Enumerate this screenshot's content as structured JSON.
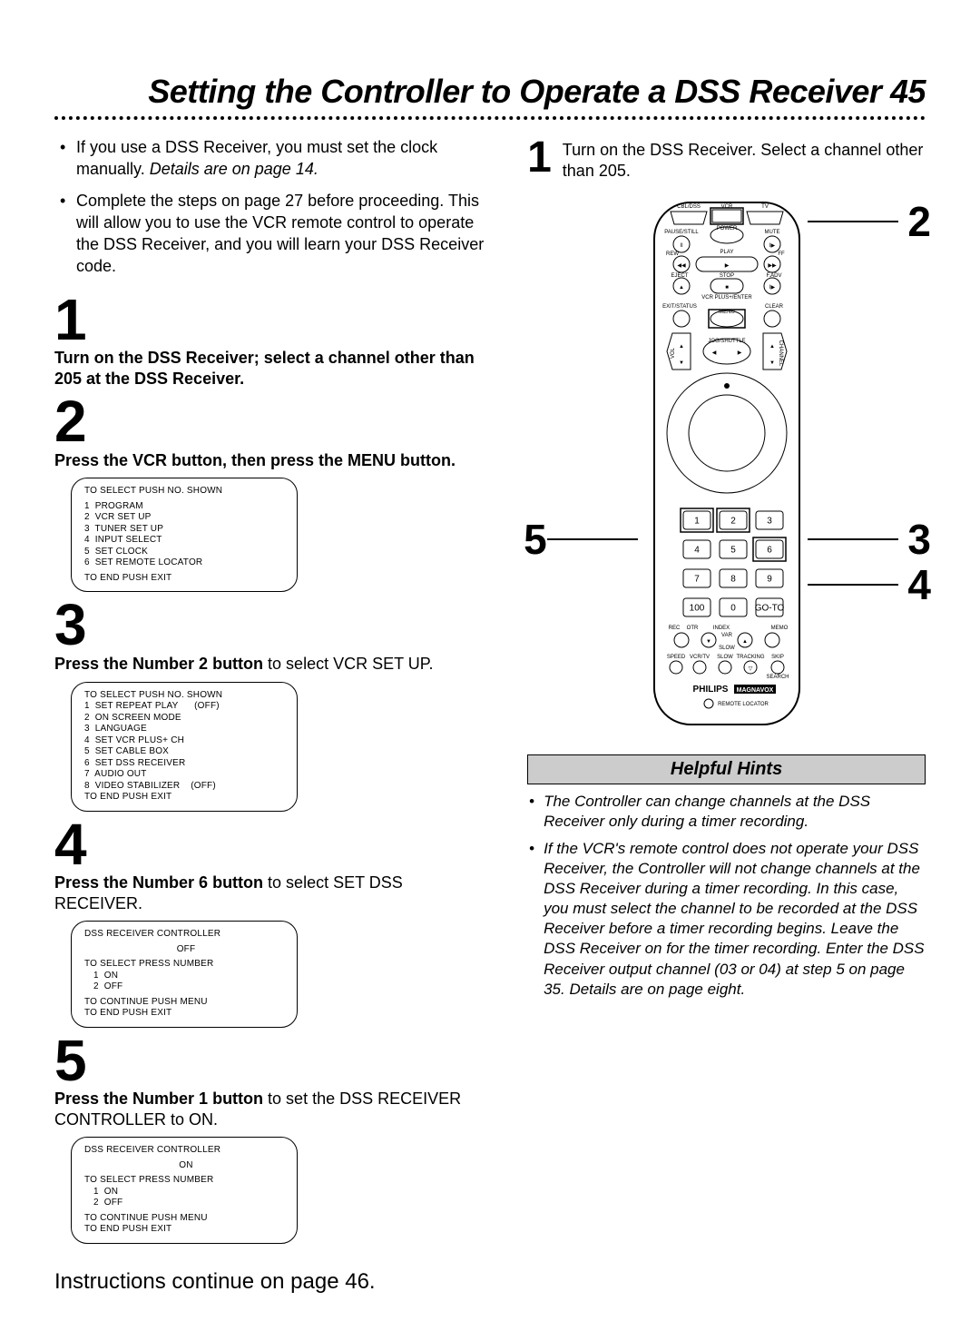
{
  "title": "Setting the Controller to Operate a DSS Receiver",
  "page_number": "45",
  "intro": {
    "bullets": [
      {
        "text": "If you use a DSS Receiver, you must set the clock manually.",
        "note": "Details are on page 14."
      },
      {
        "text": "Complete the steps on page 27 before proceeding. This will allow you to use the VCR remote control to operate the DSS Receiver, and you will learn your DSS Receiver code.",
        "note": ""
      }
    ]
  },
  "steps": [
    {
      "num": "1",
      "bold": "Turn on the DSS Receiver; select a channel other than 205 at the DSS Receiver.",
      "tail": ""
    },
    {
      "num": "2",
      "bold": "Press the VCR button, then press the MENU button.",
      "tail": ""
    },
    {
      "num": "3",
      "bold": "Press the Number 2 button",
      "tail": " to select VCR SET UP."
    },
    {
      "num": "4",
      "bold": "Press the Number 6 button",
      "tail": " to select SET DSS RECEIVER."
    },
    {
      "num": "5",
      "bold": "Press the Number 1 button",
      "tail": " to set the DSS RECEIVER CONTROLLER to ON."
    }
  ],
  "screens": {
    "menu": {
      "top": "TO SELECT PUSH NO. SHOWN",
      "items": [
        "1  PROGRAM",
        "2  VCR SET UP",
        "3  TUNER SET UP",
        "4  INPUT SELECT",
        "5  SET CLOCK",
        "6  SET REMOTE LOCATOR"
      ],
      "bottom": "TO END PUSH EXIT"
    },
    "vcrsetup": {
      "top": "TO SELECT PUSH NO. SHOWN",
      "items": [
        "1  SET REPEAT PLAY      (OFF)",
        "2  ON SCREEN MODE",
        "3  LANGUAGE",
        "4  SET VCR PLUS+ CH",
        "5  SET CABLE BOX",
        "6  SET DSS RECEIVER",
        "7  AUDIO OUT",
        "8  VIDEO STABILIZER    (OFF)"
      ],
      "bottom": "TO END PUSH EXIT"
    },
    "dss_off": {
      "title": "DSS RECEIVER CONTROLLER",
      "state": "OFF",
      "sel": "TO SELECT PRESS NUMBER",
      "opts": [
        "1  ON",
        "2  OFF"
      ],
      "cont": "TO CONTINUE PUSH MENU",
      "end": "TO END PUSH EXIT"
    },
    "dss_on": {
      "title": "DSS RECEIVER CONTROLLER",
      "state": "ON",
      "sel": "TO SELECT PRESS NUMBER",
      "opts": [
        "1  ON",
        "2  OFF"
      ],
      "cont": "TO CONTINUE PUSH MENU",
      "end": "TO END PUSH EXIT"
    }
  },
  "continue_note": "Instructions continue on page 46.",
  "right_step": {
    "num": "1",
    "text": "Turn on the DSS Receiver. Select a channel other than 205."
  },
  "remote": {
    "top_labels": {
      "cbl": "CBL/DSS",
      "vcr": "VCR",
      "tv": "TV",
      "power": "POWER"
    },
    "row_labels": {
      "pause": "PAUSE/STILL",
      "mute": "MUTE",
      "play": "PLAY",
      "rew": "REW",
      "ff": "FF",
      "eject": "EJECT",
      "stop": "STOP",
      "fadv": "F.ADV",
      "vcrplus": "VCR PLUS+/ENTER",
      "exit": "EXIT/STATUS",
      "menu": "MENU",
      "clear": "CLEAR",
      "vol": "VOL",
      "jog": "JOG/SHUTTLE",
      "chan": "CHANNEL"
    },
    "keypad": [
      [
        "1",
        "2",
        "3"
      ],
      [
        "4",
        "5",
        "6"
      ],
      [
        "7",
        "8",
        "9"
      ],
      [
        "100",
        "0",
        "GO-TO"
      ]
    ],
    "bottom_labels": {
      "rec": "REC",
      "otr": "OTR",
      "index": "INDEX",
      "memo": "MEMO",
      "var": "VAR",
      "slow": "SLOW",
      "speed": "SPEED",
      "vcrtv": "VCR/TV",
      "slow2": "SLOW",
      "tracking": "TRACKING",
      "skip": "SKIP",
      "search": "SEARCH"
    },
    "brand1": "PHILIPS",
    "brand2": "MAGNAVOX",
    "locator": "REMOTE LOCATOR",
    "callouts": {
      "c2": "2",
      "c3": "3",
      "c4": "4",
      "c5": "5"
    }
  },
  "hints": {
    "header": "Helpful Hints",
    "items": [
      "The Controller can change channels at the DSS Receiver only during a timer recording.",
      "If the VCR's remote control does not operate your DSS Receiver, the Controller will not change channels at the DSS Receiver during a timer recording. In this case, you must select the channel to be recorded at the DSS Receiver before a timer recording begins. Leave the DSS Receiver on for the timer recording. Enter the DSS Receiver output channel (03 or 04) at step 5 on page 35. Details are on page eight."
    ]
  },
  "colors": {
    "text": "#000000",
    "bg": "#ffffff",
    "hint_bg": "#cccccc"
  }
}
